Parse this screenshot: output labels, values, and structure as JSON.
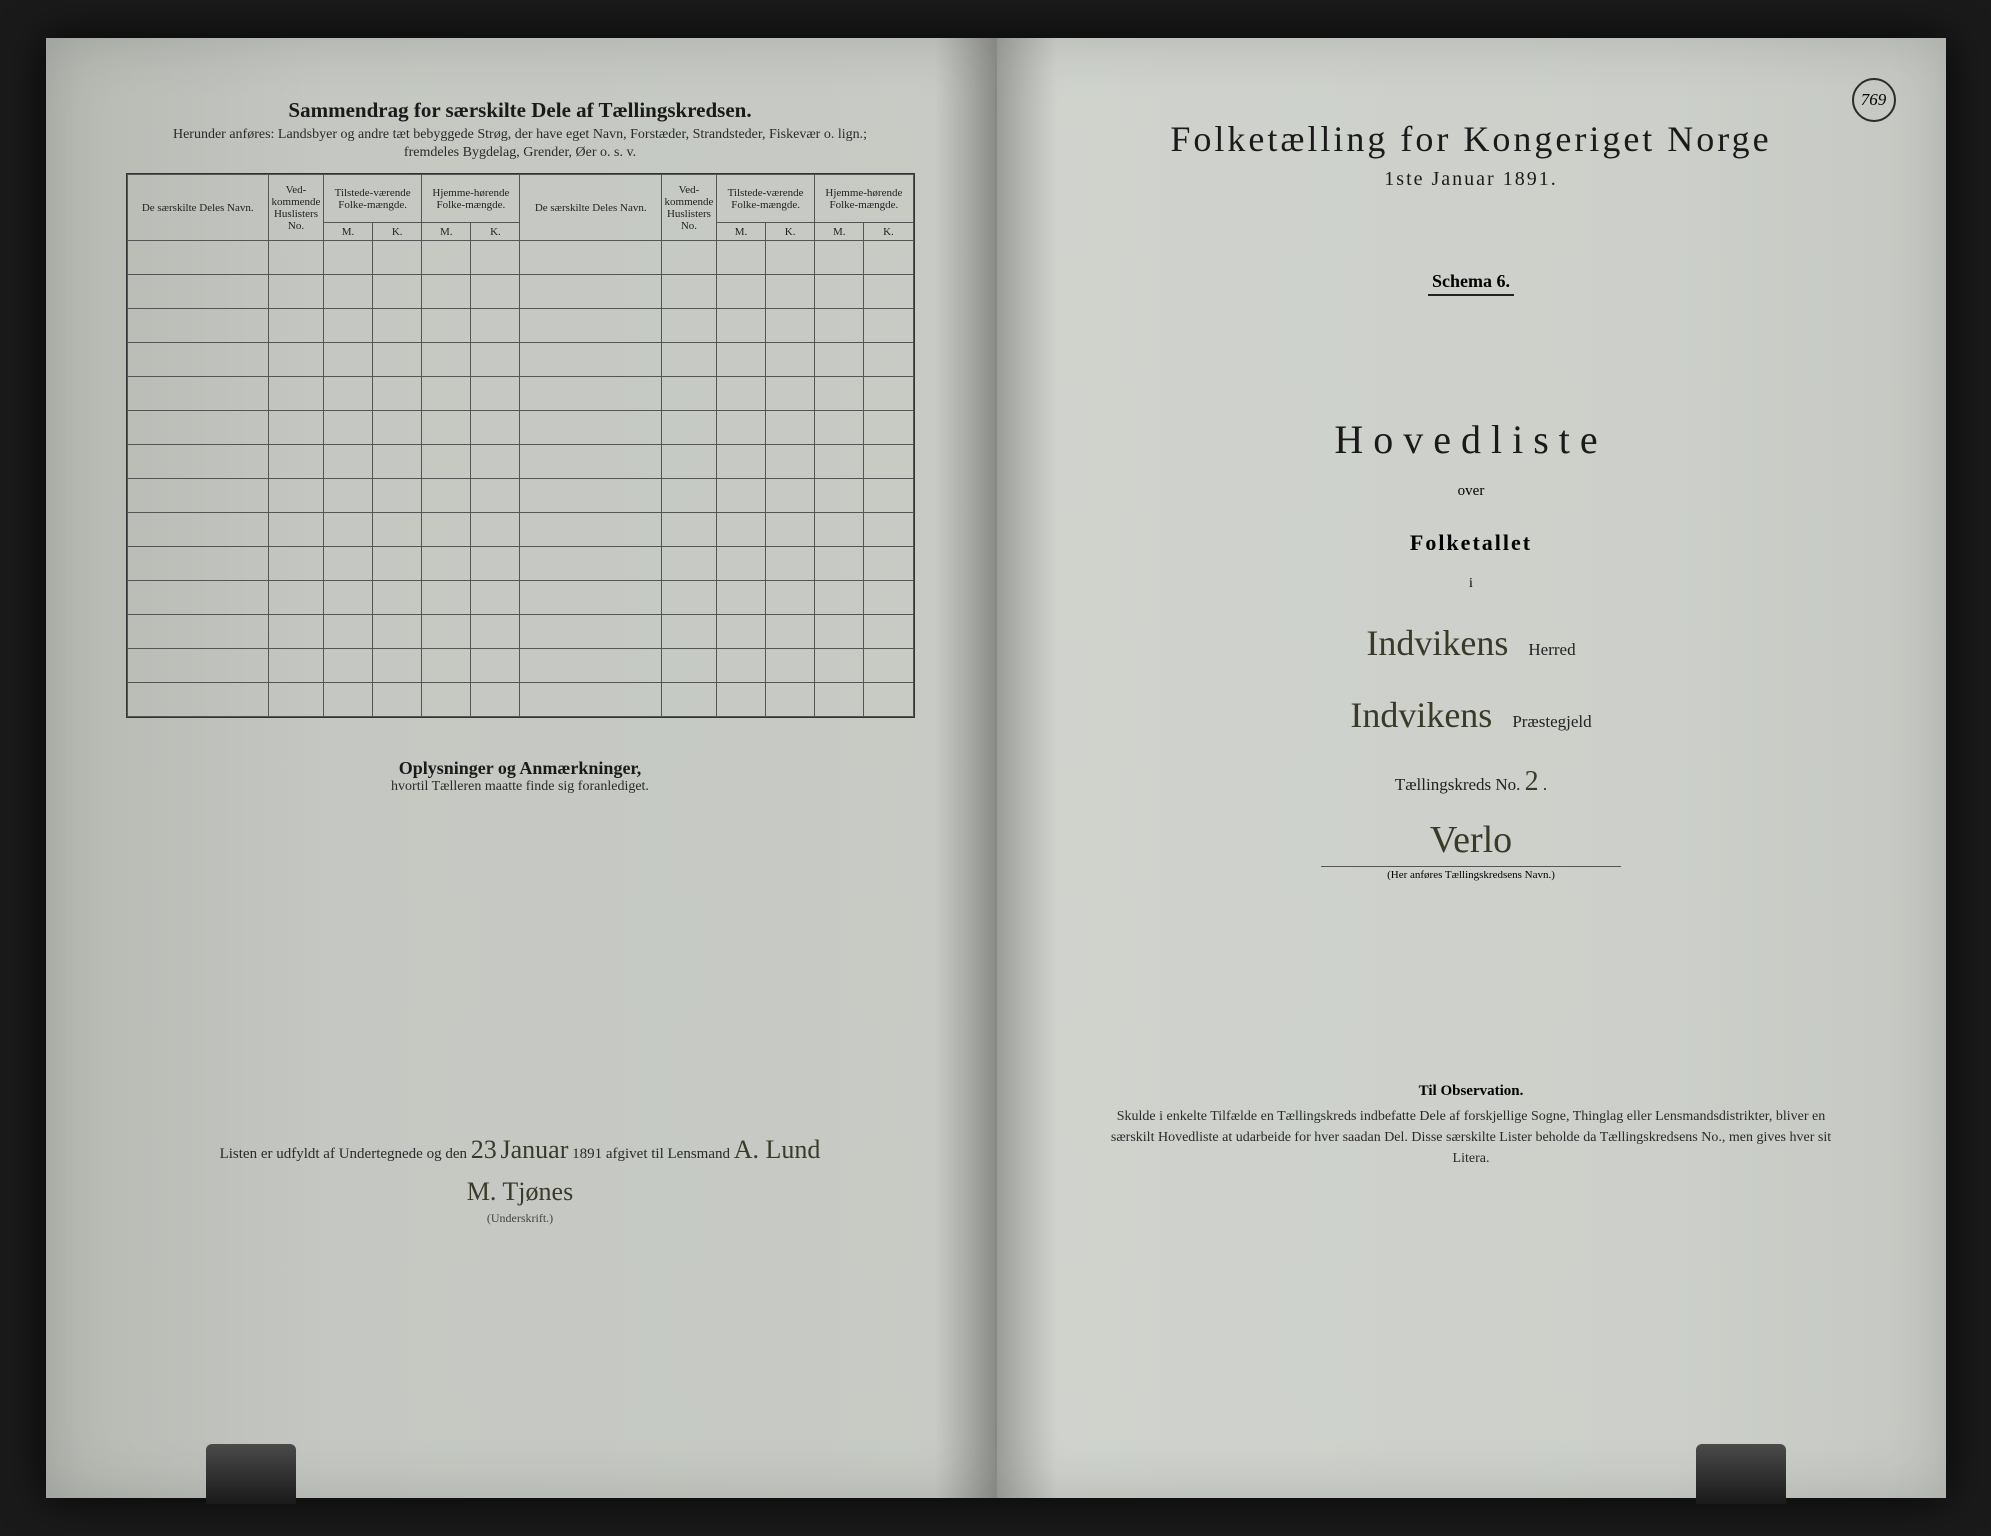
{
  "page_number": "769",
  "colors": {
    "paper": "#c8cbc5",
    "ink": "#1a1a1a",
    "border": "#555555",
    "background": "#1a1a1a",
    "cursive": "#3a3a2a"
  },
  "left_page": {
    "title": "Sammendrag for særskilte Dele af Tællingskredsen.",
    "subtitle1": "Herunder anføres: Landsbyer og andre tæt bebyggede Strøg, der have eget Navn, Forstæder, Strandsteder, Fiskevær o. lign.;",
    "subtitle2": "fremdeles Bygdelag, Grender, Øer o. s. v.",
    "table": {
      "headers": {
        "col1": "De særskilte Deles Navn.",
        "col2": "Ved-kommende Huslisters No.",
        "col3": "Tilstede-værende Folke-mængde.",
        "col4": "Hjemme-hørende Folke-mængde.",
        "col5": "De særskilte Deles Navn.",
        "col6": "Ved-kommende Huslisters No.",
        "col7": "Tilstede-værende Folke-mængde.",
        "col8": "Hjemme-hørende Folke-mængde.",
        "mk_m": "M.",
        "mk_k": "K."
      },
      "row_count": 14
    },
    "notes_title": "Oplysninger og Anmærkninger,",
    "notes_sub": "hvortil Tælleren maatte finde sig foranlediget.",
    "signature": {
      "line_prefix": "Listen er udfyldt af Undertegnede og den",
      "date_day": "23",
      "date_month": "Januar",
      "year": "1891",
      "line_suffix": "afgivet til Lensmand",
      "lensmand": "A. Lund",
      "signer": "M. Tjønes",
      "under_label": "(Underskrift.)"
    }
  },
  "right_page": {
    "census_title": "Folketælling for Kongeriget Norge",
    "census_date": "1ste Januar 1891.",
    "schema": "Schema 6.",
    "hovedliste": "Hovedliste",
    "over": "over",
    "folketallet": "Folketallet",
    "i": "i",
    "herred_value": "Indvikens",
    "herred_label": "Herred",
    "praestegjeld_value": "Indvikens",
    "praestegjeld_label": "Præstegjeld",
    "kreds_label": "Tællingskreds No.",
    "kreds_no": "2",
    "kreds_name": "Verlo",
    "kreds_sub": "(Her anføres Tællingskredsens Navn.)",
    "observation": {
      "title": "Til Observation.",
      "text": "Skulde i enkelte Tilfælde en Tællingskreds indbefatte Dele af forskjellige Sogne, Thinglag eller Lensmandsdistrikter, bliver en særskilt Hovedliste at udarbeide for hver saadan Del. Disse særskilte Lister beholde da Tællingskredsens No., men gives hver sit Litera."
    }
  }
}
